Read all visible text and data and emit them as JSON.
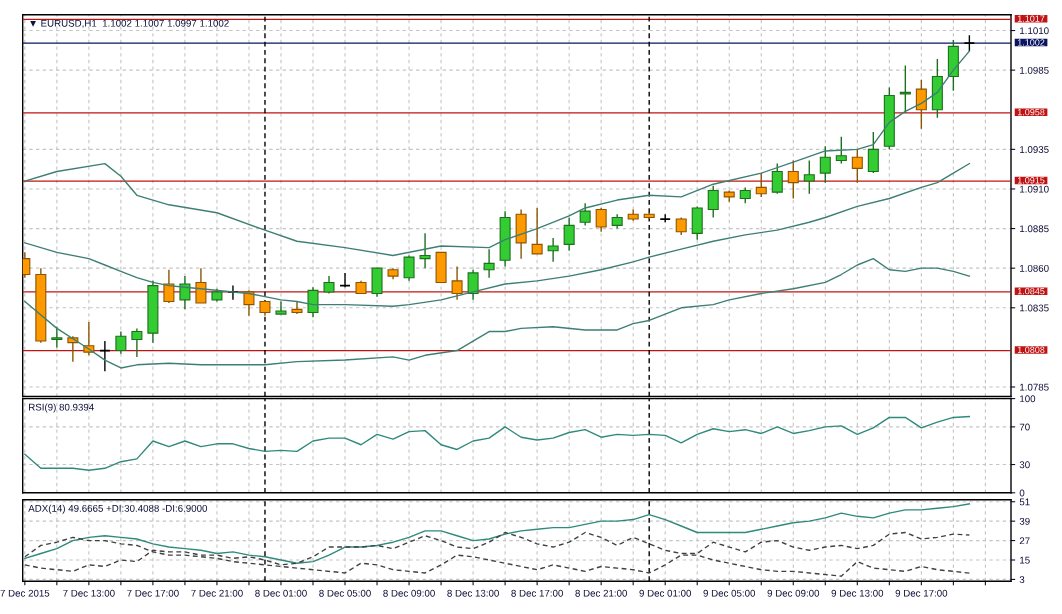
{
  "chart_data": [
    {
      "type": "candlestick",
      "title": "▼ EURUSD,H1  1.1002 1.1007 1.0997 1.1002",
      "x": [
        "2015-12-07T09:00",
        "2015-12-07T10:00",
        "2015-12-07T11:00",
        "2015-12-07T12:00",
        "2015-12-07T13:00",
        "2015-12-07T14:00",
        "2015-12-07T15:00",
        "2015-12-07T16:00",
        "2015-12-07T17:00",
        "2015-12-07T18:00",
        "2015-12-07T19:00",
        "2015-12-07T20:00",
        "2015-12-07T21:00",
        "2015-12-07T22:00",
        "2015-12-07T23:00",
        "2015-12-08T00:00",
        "2015-12-08T01:00",
        "2015-12-08T02:00",
        "2015-12-08T03:00",
        "2015-12-08T04:00",
        "2015-12-08T05:00",
        "2015-12-08T06:00",
        "2015-12-08T07:00",
        "2015-12-08T08:00",
        "2015-12-08T09:00",
        "2015-12-08T10:00",
        "2015-12-08T11:00",
        "2015-12-08T12:00",
        "2015-12-08T13:00",
        "2015-12-08T14:00",
        "2015-12-08T15:00",
        "2015-12-08T16:00",
        "2015-12-08T17:00",
        "2015-12-08T18:00",
        "2015-12-08T19:00",
        "2015-12-08T20:00",
        "2015-12-08T21:00",
        "2015-12-08T22:00",
        "2015-12-08T23:00",
        "2015-12-09T00:00",
        "2015-12-09T01:00",
        "2015-12-09T02:00",
        "2015-12-09T03:00",
        "2015-12-09T04:00",
        "2015-12-09T05:00",
        "2015-12-09T06:00",
        "2015-12-09T07:00",
        "2015-12-09T08:00",
        "2015-12-09T09:00",
        "2015-12-09T10:00",
        "2015-12-09T11:00",
        "2015-12-09T12:00",
        "2015-12-09T13:00",
        "2015-12-09T14:00",
        "2015-12-09T15:00",
        "2015-12-09T16:00",
        "2015-12-09T17:00",
        "2015-12-09T18:00",
        "2015-12-09T19:00",
        "2015-12-09T20:00"
      ],
      "ohlc": [
        [
          1.0866,
          1.087,
          1.0854,
          1.0856
        ],
        [
          1.0856,
          1.086,
          1.0813,
          1.0814
        ],
        [
          1.0815,
          1.0823,
          1.081,
          1.0816
        ],
        [
          1.0816,
          1.0817,
          1.0801,
          1.0813
        ],
        [
          1.0811,
          1.0826,
          1.0805,
          1.0807
        ],
        [
          1.0808,
          1.0814,
          1.0795,
          1.0808
        ],
        [
          1.0808,
          1.082,
          1.0806,
          1.0817
        ],
        [
          1.0815,
          1.0822,
          1.0804,
          1.082
        ],
        [
          1.0819,
          1.0852,
          1.0813,
          1.0849
        ],
        [
          1.085,
          1.0859,
          1.0838,
          1.0839
        ],
        [
          1.084,
          1.0855,
          1.0834,
          1.085
        ],
        [
          1.0851,
          1.086,
          1.0838,
          1.0838
        ],
        [
          1.084,
          1.0847,
          1.0839,
          1.0845
        ],
        [
          1.0845,
          1.0849,
          1.084,
          1.0845
        ],
        [
          1.0845,
          1.0846,
          1.083,
          1.0837
        ],
        [
          1.0839,
          1.0839,
          1.083,
          1.0832
        ],
        [
          1.0831,
          1.0839,
          1.0831,
          1.0833
        ],
        [
          1.0834,
          1.0839,
          1.0831,
          1.0832
        ],
        [
          1.0832,
          1.0848,
          1.0829,
          1.0846
        ],
        [
          1.0845,
          1.0855,
          1.0844,
          1.0851
        ],
        [
          1.0849,
          1.0857,
          1.0848,
          1.0849
        ],
        [
          1.0851,
          1.0852,
          1.0844,
          1.0844
        ],
        [
          1.0844,
          1.086,
          1.0842,
          1.086
        ],
        [
          1.0859,
          1.086,
          1.0853,
          1.0855
        ],
        [
          1.0854,
          1.0868,
          1.0852,
          1.0867
        ],
        [
          1.0866,
          1.0882,
          1.086,
          1.0868
        ],
        [
          1.087,
          1.087,
          1.0851,
          1.0851
        ],
        [
          1.0852,
          1.0861,
          1.084,
          1.0844
        ],
        [
          1.0844,
          1.0859,
          1.084,
          1.0857
        ],
        [
          1.0859,
          1.0872,
          1.0854,
          1.0863
        ],
        [
          1.0865,
          1.0896,
          1.0861,
          1.0892
        ],
        [
          1.0894,
          1.0897,
          1.0866,
          1.0876
        ],
        [
          1.0875,
          1.0898,
          1.0869,
          1.0869
        ],
        [
          1.0871,
          1.0879,
          1.0864,
          1.0874
        ],
        [
          1.0875,
          1.0892,
          1.0871,
          1.0887
        ],
        [
          1.0889,
          1.0901,
          1.0887,
          1.0896
        ],
        [
          1.0897,
          1.0898,
          1.0883,
          1.0886
        ],
        [
          1.0887,
          1.0894,
          1.0885,
          1.0892
        ],
        [
          1.0894,
          1.0897,
          1.089,
          1.0891
        ],
        [
          1.0894,
          1.0895,
          1.0891,
          1.0892
        ],
        [
          1.0891,
          1.0894,
          1.0889,
          1.0891
        ],
        [
          1.0891,
          1.0892,
          1.0881,
          1.0883
        ],
        [
          1.0882,
          1.0899,
          1.0878,
          1.0898
        ],
        [
          1.0897,
          1.0912,
          1.0892,
          1.0909
        ],
        [
          1.0908,
          1.0909,
          1.0902,
          1.0905
        ],
        [
          1.0904,
          1.0911,
          1.0901,
          1.0909
        ],
        [
          1.0911,
          1.092,
          1.0905,
          1.0907
        ],
        [
          1.0908,
          1.0926,
          1.0907,
          1.0921
        ],
        [
          1.0921,
          1.0928,
          1.0904,
          1.0914
        ],
        [
          1.0915,
          1.0928,
          1.0907,
          1.0919
        ],
        [
          1.092,
          1.0937,
          1.0914,
          1.093
        ],
        [
          1.0928,
          1.0943,
          1.0926,
          1.0931
        ],
        [
          1.093,
          1.0935,
          1.0914,
          1.0923
        ],
        [
          1.0921,
          1.0946,
          1.092,
          1.0935
        ],
        [
          1.0937,
          1.0974,
          1.0935,
          1.0969
        ],
        [
          1.097,
          1.0988,
          1.0958,
          1.0971
        ],
        [
          1.0973,
          1.0979,
          1.0948,
          1.096
        ],
        [
          1.096,
          1.0992,
          1.0955,
          1.0981
        ],
        [
          1.0981,
          1.1004,
          1.0972,
          1.1
        ],
        [
          1.1002,
          1.1007,
          1.0997,
          1.1002
        ]
      ],
      "colors": [
        "#ff9900",
        "#ff9900",
        "#33cc33",
        "#ff9900",
        "#ff9900",
        "#000000",
        "#33cc33",
        "#33cc33",
        "#33cc33",
        "#ff9900",
        "#33cc33",
        "#ff9900",
        "#33cc33",
        "#000000",
        "#ff9900",
        "#ff9900",
        "#33cc33",
        "#ff9900",
        "#33cc33",
        "#33cc33",
        "#000000",
        "#ff9900",
        "#33cc33",
        "#ff9900",
        "#33cc33",
        "#33cc33",
        "#ff9900",
        "#ff9900",
        "#33cc33",
        "#33cc33",
        "#33cc33",
        "#ff9900",
        "#ff9900",
        "#33cc33",
        "#33cc33",
        "#33cc33",
        "#ff9900",
        "#33cc33",
        "#ff9900",
        "#ff9900",
        "#000000",
        "#ff9900",
        "#33cc33",
        "#33cc33",
        "#ff9900",
        "#33cc33",
        "#ff9900",
        "#33cc33",
        "#ff9900",
        "#33cc33",
        "#33cc33",
        "#33cc33",
        "#ff9900",
        "#33cc33",
        "#33cc33",
        "#33cc33",
        "#ff9900",
        "#33cc33",
        "#33cc33",
        "#000000"
      ],
      "series": [
        {
          "type": "line",
          "color": "#3e7f74",
          "x": [
            "2015-12-07T09:00",
            "2015-12-07T11:00",
            "2015-12-07T14:00",
            "2015-12-07T15:00",
            "2015-12-07T16:00",
            "2015-12-07T18:00",
            "2015-12-07T21:00",
            "2015-12-08T00:00",
            "2015-12-08T02:00",
            "2015-12-08T05:00",
            "2015-12-08T08:00",
            "2015-12-08T11:00",
            "2015-12-08T14:00",
            "2015-12-08T15:00",
            "2015-12-08T17:00",
            "2015-12-08T19:00",
            "2015-12-08T20:00",
            "2015-12-08T22:00",
            "2015-12-09T00:00",
            "2015-12-09T02:00",
            "2015-12-09T04:00",
            "2015-12-09T07:00",
            "2015-12-09T09:00",
            "2015-12-09T11:00",
            "2015-12-09T13:00",
            "2015-12-09T14:00",
            "2015-12-09T15:00",
            "2015-12-09T16:00",
            "2015-12-09T17:00",
            "2015-12-09T18:00",
            "2015-12-09T19:00",
            "2015-12-09T20:00"
          ],
          "values": [
            1.0915,
            1.0921,
            1.0926,
            1.0918,
            1.0906,
            1.09,
            1.0895,
            1.0884,
            1.0877,
            1.0873,
            1.0868,
            1.0874,
            1.0873,
            1.0878,
            1.0885,
            1.0893,
            1.0898,
            1.0903,
            1.0906,
            1.0905,
            1.0913,
            1.092,
            1.0927,
            1.0934,
            1.0935,
            1.0938,
            1.0952,
            1.0959,
            1.0964,
            1.0971,
            1.0985,
            1.0997
          ]
        },
        {
          "type": "line",
          "color": "#3e7f74",
          "x": [
            "2015-12-07T09:00",
            "2015-12-07T11:00",
            "2015-12-07T13:00",
            "2015-12-07T14:00",
            "2015-12-07T15:00",
            "2015-12-07T16:00",
            "2015-12-07T17:00",
            "2015-12-07T18:00",
            "2015-12-07T19:00",
            "2015-12-07T20:00",
            "2015-12-07T22:00",
            "2015-12-07T23:00",
            "2015-12-08T00:00",
            "2015-12-08T01:00",
            "2015-12-08T02:00",
            "2015-12-08T03:00",
            "2015-12-08T05:00",
            "2015-12-08T08:00",
            "2015-12-08T09:00",
            "2015-12-08T11:00",
            "2015-12-08T13:00",
            "2015-12-08T15:00",
            "2015-12-08T17:00",
            "2015-12-08T19:00",
            "2015-12-08T21:00",
            "2015-12-08T23:00",
            "2015-12-09T00:00",
            "2015-12-09T02:00",
            "2015-12-09T04:00",
            "2015-12-09T06:00",
            "2015-12-09T08:00",
            "2015-12-09T10:00",
            "2015-12-09T11:00",
            "2015-12-09T13:00",
            "2015-12-09T15:00",
            "2015-12-09T17:00",
            "2015-12-09T18:00",
            "2015-12-09T19:00",
            "2015-12-09T20:00"
          ],
          "values": [
            1.0876,
            1.087,
            1.0866,
            1.0862,
            1.0858,
            1.0854,
            1.0851,
            1.0849,
            1.0848,
            1.0847,
            1.0845,
            1.0844,
            1.0842,
            1.084,
            1.0839,
            1.0837,
            1.0837,
            1.0836,
            1.0837,
            1.084,
            1.0845,
            1.085,
            1.0852,
            1.0855,
            1.0859,
            1.0864,
            1.0867,
            1.0872,
            1.0877,
            1.0881,
            1.0884,
            1.0889,
            1.0892,
            1.0899,
            1.0904,
            1.0911,
            1.0914,
            1.092,
            1.0926
          ]
        },
        {
          "type": "line",
          "color": "#3e7f74",
          "x": [
            "2015-12-07T09:00",
            "2015-12-07T11:00",
            "2015-12-07T13:00",
            "2015-12-07T14:00",
            "2015-12-07T15:00",
            "2015-12-07T16:00",
            "2015-12-07T18:00",
            "2015-12-07T20:00",
            "2015-12-08T00:00",
            "2015-12-08T02:00",
            "2015-12-08T05:00",
            "2015-12-08T08:00",
            "2015-12-08T09:00",
            "2015-12-08T10:00",
            "2015-12-08T12:00",
            "2015-12-08T13:00",
            "2015-12-08T14:00",
            "2015-12-08T15:00",
            "2015-12-08T16:00",
            "2015-12-08T18:00",
            "2015-12-08T20:00",
            "2015-12-08T22:00",
            "2015-12-08T23:00",
            "2015-12-09T00:00",
            "2015-12-09T02:00",
            "2015-12-09T04:00",
            "2015-12-09T05:00",
            "2015-12-09T07:00",
            "2015-12-09T09:00",
            "2015-12-09T11:00",
            "2015-12-09T12:00",
            "2015-12-09T13:00",
            "2015-12-09T14:00",
            "2015-12-09T15:00",
            "2015-12-09T16:00",
            "2015-12-09T17:00",
            "2015-12-09T18:00",
            "2015-12-09T19:00",
            "2015-12-09T20:00"
          ],
          "values": [
            1.0839,
            1.0822,
            1.0809,
            1.0802,
            1.0797,
            1.0799,
            1.08,
            1.0799,
            1.0799,
            1.0801,
            1.0802,
            1.0804,
            1.0802,
            1.0805,
            1.0808,
            1.0814,
            1.082,
            1.082,
            1.0822,
            1.0823,
            1.0821,
            1.0821,
            1.0825,
            1.0827,
            1.0835,
            1.0837,
            1.084,
            1.0844,
            1.0847,
            1.0851,
            1.0856,
            1.0862,
            1.0866,
            1.0859,
            1.0858,
            1.086,
            1.086,
            1.0858,
            1.0855
          ]
        }
      ],
      "xlim": [
        "2015-12-07T08:52",
        "2015-12-09T22:36"
      ],
      "xticks": [
        {
          "value": "2015-12-07T09:00",
          "label": null
        },
        {
          "value": "2015-12-07T11:00",
          "label": null
        },
        {
          "value": "2015-12-07T13:00",
          "label": null
        },
        {
          "value": "2015-12-07T15:00",
          "label": null
        },
        {
          "value": "2015-12-07T17:00",
          "label": null
        },
        {
          "value": "2015-12-07T19:00",
          "label": null
        },
        {
          "value": "2015-12-07T21:00",
          "label": null
        },
        {
          "value": "2015-12-07T23:00",
          "label": null
        },
        {
          "value": "2015-12-08T01:00",
          "label": null
        },
        {
          "value": "2015-12-08T03:00",
          "label": null
        },
        {
          "value": "2015-12-08T05:00",
          "label": null
        },
        {
          "value": "2015-12-08T07:00",
          "label": null
        },
        {
          "value": "2015-12-08T09:00",
          "label": null
        },
        {
          "value": "2015-12-08T11:00",
          "label": null
        },
        {
          "value": "2015-12-08T13:00",
          "label": null
        },
        {
          "value": "2015-12-08T15:00",
          "label": null
        },
        {
          "value": "2015-12-08T17:00",
          "label": null
        },
        {
          "value": "2015-12-08T19:00",
          "label": null
        },
        {
          "value": "2015-12-08T21:00",
          "label": null
        },
        {
          "value": "2015-12-08T23:00",
          "label": null
        },
        {
          "value": "2015-12-09T01:00",
          "label": null
        },
        {
          "value": "2015-12-09T03:00",
          "label": null
        },
        {
          "value": "2015-12-09T05:00",
          "label": null
        },
        {
          "value": "2015-12-09T07:00",
          "label": null
        },
        {
          "value": "2015-12-09T09:00",
          "label": null
        },
        {
          "value": "2015-12-09T11:00",
          "label": null
        },
        {
          "value": "2015-12-09T13:00",
          "label": null
        },
        {
          "value": "2015-12-09T15:00",
          "label": null
        },
        {
          "value": "2015-12-09T17:00",
          "label": null
        },
        {
          "value": "2015-12-09T19:00",
          "label": null
        },
        {
          "value": "2015-12-09T21:00",
          "label": null
        }
      ],
      "ylim": [
        1.0779,
        1.102
      ],
      "yticks": [
        {
          "value": 1.101,
          "label": "1.1010"
        },
        1.0985,
        1.0935,
        {
          "value": 1.091,
          "label": "1.0910"
        },
        1.0885,
        {
          "value": 1.086,
          "label": "1.0860"
        },
        1.0835,
        1.0785
      ],
      "tick_labels": "y",
      "grid": true,
      "ref_lines": [
        {
          "axis": "y",
          "value": 1.1017,
          "label": "1.1017",
          "color": "#c01414"
        },
        {
          "axis": "y",
          "value": 1.1002,
          "label": "1.1002",
          "color": "#0a1460"
        },
        {
          "axis": "y",
          "value": 1.0958,
          "label": "1.0958",
          "color": "#c01414"
        },
        {
          "axis": "y",
          "value": 1.0915,
          "label": "1.0915",
          "color": "#c01414"
        },
        {
          "axis": "y",
          "value": 1.0845,
          "label": "1.0845",
          "color": "#c01414"
        },
        {
          "axis": "y",
          "value": 1.0808,
          "label": "1.0808",
          "color": "#c01414"
        },
        {
          "axis": "x",
          "value": "2015-12-08T00:00",
          "color": "#000000",
          "line_style": "dashed"
        },
        {
          "axis": "x",
          "value": "2015-12-09T00:00",
          "color": "#000000",
          "line_style": "dashed"
        }
      ]
    },
    {
      "type": "line",
      "title": "RSI(9) 80.9394",
      "x": [
        "2015-12-07T09:00",
        "2015-12-07T10:00",
        "2015-12-07T11:00",
        "2015-12-07T12:00",
        "2015-12-07T13:00",
        "2015-12-07T14:00",
        "2015-12-07T15:00",
        "2015-12-07T16:00",
        "2015-12-07T17:00",
        "2015-12-07T18:00",
        "2015-12-07T19:00",
        "2015-12-07T20:00",
        "2015-12-07T21:00",
        "2015-12-07T22:00",
        "2015-12-07T23:00",
        "2015-12-08T00:00",
        "2015-12-08T01:00",
        "2015-12-08T02:00",
        "2015-12-08T03:00",
        "2015-12-08T04:00",
        "2015-12-08T05:00",
        "2015-12-08T06:00",
        "2015-12-08T07:00",
        "2015-12-08T08:00",
        "2015-12-08T09:00",
        "2015-12-08T10:00",
        "2015-12-08T11:00",
        "2015-12-08T12:00",
        "2015-12-08T13:00",
        "2015-12-08T14:00",
        "2015-12-08T15:00",
        "2015-12-08T16:00",
        "2015-12-08T17:00",
        "2015-12-08T18:00",
        "2015-12-08T19:00",
        "2015-12-08T20:00",
        "2015-12-08T21:00",
        "2015-12-08T22:00",
        "2015-12-08T23:00",
        "2015-12-09T00:00",
        "2015-12-09T01:00",
        "2015-12-09T02:00",
        "2015-12-09T03:00",
        "2015-12-09T04:00",
        "2015-12-09T05:00",
        "2015-12-09T06:00",
        "2015-12-09T07:00",
        "2015-12-09T08:00",
        "2015-12-09T09:00",
        "2015-12-09T10:00",
        "2015-12-09T11:00",
        "2015-12-09T12:00",
        "2015-12-09T13:00",
        "2015-12-09T14:00",
        "2015-12-09T15:00",
        "2015-12-09T16:00",
        "2015-12-09T17:00",
        "2015-12-09T18:00",
        "2015-12-09T19:00",
        "2015-12-09T20:00"
      ],
      "series": [
        {
          "color": "#2f8a7c",
          "values": [
            41,
            26,
            26,
            26,
            24,
            26,
            33,
            36,
            55,
            49,
            55,
            49,
            52,
            52,
            47,
            44,
            45,
            44,
            55,
            58,
            58,
            51,
            62,
            57,
            65,
            66,
            51,
            46,
            55,
            58,
            70,
            59,
            56,
            58,
            64,
            67,
            59,
            62,
            61,
            62,
            61,
            53,
            62,
            68,
            65,
            67,
            63,
            70,
            63,
            66,
            70,
            71,
            62,
            69,
            80,
            80,
            69,
            75,
            80,
            80.9394
          ]
        }
      ],
      "xlim": [
        "2015-12-07T08:52",
        "2015-12-09T22:36"
      ],
      "xticks": [
        {
          "value": "2015-12-07T09:00",
          "label": null
        },
        {
          "value": "2015-12-07T11:00",
          "label": null
        },
        {
          "value": "2015-12-07T13:00",
          "label": null
        },
        {
          "value": "2015-12-07T15:00",
          "label": null
        },
        {
          "value": "2015-12-07T17:00",
          "label": null
        },
        {
          "value": "2015-12-07T19:00",
          "label": null
        },
        {
          "value": "2015-12-07T21:00",
          "label": null
        },
        {
          "value": "2015-12-07T23:00",
          "label": null
        },
        {
          "value": "2015-12-08T01:00",
          "label": null
        },
        {
          "value": "2015-12-08T03:00",
          "label": null
        },
        {
          "value": "2015-12-08T05:00",
          "label": null
        },
        {
          "value": "2015-12-08T07:00",
          "label": null
        },
        {
          "value": "2015-12-08T09:00",
          "label": null
        },
        {
          "value": "2015-12-08T11:00",
          "label": null
        },
        {
          "value": "2015-12-08T13:00",
          "label": null
        },
        {
          "value": "2015-12-08T15:00",
          "label": null
        },
        {
          "value": "2015-12-08T17:00",
          "label": null
        },
        {
          "value": "2015-12-08T19:00",
          "label": null
        },
        {
          "value": "2015-12-08T21:00",
          "label": null
        },
        {
          "value": "2015-12-08T23:00",
          "label": null
        },
        {
          "value": "2015-12-09T01:00",
          "label": null
        },
        {
          "value": "2015-12-09T03:00",
          "label": null
        },
        {
          "value": "2015-12-09T05:00",
          "label": null
        },
        {
          "value": "2015-12-09T07:00",
          "label": null
        },
        {
          "value": "2015-12-09T09:00",
          "label": null
        },
        {
          "value": "2015-12-09T11:00",
          "label": null
        },
        {
          "value": "2015-12-09T13:00",
          "label": null
        },
        {
          "value": "2015-12-09T15:00",
          "label": null
        },
        {
          "value": "2015-12-09T17:00",
          "label": null
        },
        {
          "value": "2015-12-09T19:00",
          "label": null
        },
        {
          "value": "2015-12-09T21:00",
          "label": null
        }
      ],
      "ylim": [
        0,
        100
      ],
      "yticks": [
        0,
        30,
        70,
        100
      ],
      "tick_labels": "y",
      "grid": true,
      "ref_lines": [
        {
          "axis": "x",
          "value": "2015-12-08T00:00",
          "color": "#000000",
          "line_style": "dashed"
        },
        {
          "axis": "x",
          "value": "2015-12-09T00:00",
          "color": "#000000",
          "line_style": "dashed"
        }
      ]
    },
    {
      "type": "line",
      "title": "ADX(14) 49.6665 +DI:30.4088 -DI:6.9000",
      "x": [
        "2015-12-07T09:00",
        "2015-12-07T10:00",
        "2015-12-07T11:00",
        "2015-12-07T12:00",
        "2015-12-07T13:00",
        "2015-12-07T14:00",
        "2015-12-07T15:00",
        "2015-12-07T16:00",
        "2015-12-07T17:00",
        "2015-12-07T18:00",
        "2015-12-07T19:00",
        "2015-12-07T20:00",
        "2015-12-07T21:00",
        "2015-12-07T22:00",
        "2015-12-07T23:00",
        "2015-12-08T00:00",
        "2015-12-08T01:00",
        "2015-12-08T02:00",
        "2015-12-08T03:00",
        "2015-12-08T04:00",
        "2015-12-08T05:00",
        "2015-12-08T06:00",
        "2015-12-08T07:00",
        "2015-12-08T08:00",
        "2015-12-08T09:00",
        "2015-12-08T10:00",
        "2015-12-08T11:00",
        "2015-12-08T12:00",
        "2015-12-08T13:00",
        "2015-12-08T14:00",
        "2015-12-08T15:00",
        "2015-12-08T16:00",
        "2015-12-08T17:00",
        "2015-12-08T18:00",
        "2015-12-08T19:00",
        "2015-12-08T20:00",
        "2015-12-08T21:00",
        "2015-12-08T22:00",
        "2015-12-08T23:00",
        "2015-12-09T00:00",
        "2015-12-09T01:00",
        "2015-12-09T02:00",
        "2015-12-09T03:00",
        "2015-12-09T04:00",
        "2015-12-09T05:00",
        "2015-12-09T06:00",
        "2015-12-09T07:00",
        "2015-12-09T08:00",
        "2015-12-09T09:00",
        "2015-12-09T10:00",
        "2015-12-09T11:00",
        "2015-12-09T12:00",
        "2015-12-09T13:00",
        "2015-12-09T14:00",
        "2015-12-09T15:00",
        "2015-12-09T16:00",
        "2015-12-09T17:00",
        "2015-12-09T18:00",
        "2015-12-09T19:00",
        "2015-12-09T20:00"
      ],
      "series": [
        {
          "color": "#2f8a7c",
          "line_style": "solid",
          "values": [
            16,
            19,
            22,
            27,
            29,
            30,
            29,
            28,
            25,
            23,
            22,
            21,
            19,
            20,
            18,
            17,
            15,
            13,
            14,
            18,
            23,
            23,
            24,
            26,
            29,
            33,
            33,
            30,
            27,
            28,
            31,
            33,
            34,
            35,
            35,
            37,
            39,
            39,
            40,
            43,
            40,
            36,
            32,
            32,
            32,
            32,
            34,
            36,
            38,
            39,
            41,
            44,
            42,
            41,
            44,
            46,
            46,
            47,
            48,
            49.6665
          ]
        },
        {
          "color": "#404040",
          "line_style": "dashed",
          "values": [
            12,
            10,
            9,
            8,
            12,
            11,
            15,
            14,
            21,
            20,
            20,
            18,
            18,
            16,
            17,
            15,
            12,
            13,
            17,
            23,
            23,
            23,
            24,
            22,
            26,
            30,
            27,
            23,
            22,
            26,
            32,
            29,
            25,
            23,
            26,
            32,
            29,
            24,
            29,
            25,
            21,
            19,
            19,
            26,
            23,
            20,
            26,
            27,
            23,
            21,
            23,
            24,
            22,
            24,
            31,
            32,
            28,
            29,
            31,
            30.4088
          ]
        },
        {
          "color": "#404040",
          "line_style": "dashed",
          "values": [
            17,
            24,
            26,
            29,
            27,
            27,
            25,
            24,
            20,
            18,
            18,
            17,
            16,
            14,
            13,
            12,
            11,
            10,
            9,
            8,
            7,
            13,
            12,
            9,
            8,
            7,
            12,
            18,
            17,
            15,
            13,
            11,
            9,
            12,
            10,
            8,
            11,
            10,
            9,
            7,
            12,
            18,
            18,
            15,
            13,
            11,
            9,
            8,
            8,
            7,
            6,
            5,
            14,
            10,
            9,
            8,
            11,
            9,
            8,
            6.9
          ]
        }
      ],
      "xlim": [
        "2015-12-07T08:52",
        "2015-12-09T22:36"
      ],
      "xticks": [
        {
          "value": "2015-12-07T09:00",
          "label": "7 Dec 2015"
        },
        {
          "value": "2015-12-07T11:00",
          "label": null
        },
        {
          "value": "2015-12-07T13:00",
          "label": "7 Dec 13:00"
        },
        {
          "value": "2015-12-07T15:00",
          "label": null
        },
        {
          "value": "2015-12-07T17:00",
          "label": "7 Dec 17:00"
        },
        {
          "value": "2015-12-07T19:00",
          "label": null
        },
        {
          "value": "2015-12-07T21:00",
          "label": "7 Dec 21:00"
        },
        {
          "value": "2015-12-07T23:00",
          "label": null
        },
        {
          "value": "2015-12-08T01:00",
          "label": "8 Dec 01:00"
        },
        {
          "value": "2015-12-08T03:00",
          "label": null
        },
        {
          "value": "2015-12-08T05:00",
          "label": "8 Dec 05:00"
        },
        {
          "value": "2015-12-08T07:00",
          "label": null
        },
        {
          "value": "2015-12-08T09:00",
          "label": "8 Dec 09:00"
        },
        {
          "value": "2015-12-08T11:00",
          "label": null
        },
        {
          "value": "2015-12-08T13:00",
          "label": "8 Dec 13:00"
        },
        {
          "value": "2015-12-08T15:00",
          "label": null
        },
        {
          "value": "2015-12-08T17:00",
          "label": "8 Dec 17:00"
        },
        {
          "value": "2015-12-08T19:00",
          "label": null
        },
        {
          "value": "2015-12-08T21:00",
          "label": "8 Dec 21:00"
        },
        {
          "value": "2015-12-08T23:00",
          "label": null
        },
        {
          "value": "2015-12-09T01:00",
          "label": "9 Dec 01:00"
        },
        {
          "value": "2015-12-09T03:00",
          "label": null
        },
        {
          "value": "2015-12-09T05:00",
          "label": "9 Dec 05:00"
        },
        {
          "value": "2015-12-09T07:00",
          "label": null
        },
        {
          "value": "2015-12-09T09:00",
          "label": "9 Dec 09:00"
        },
        {
          "value": "2015-12-09T11:00",
          "label": null
        },
        {
          "value": "2015-12-09T13:00",
          "label": "9 Dec 13:00"
        },
        {
          "value": "2015-12-09T15:00",
          "label": null
        },
        {
          "value": "2015-12-09T17:00",
          "label": "9 Dec 17:00"
        },
        {
          "value": "2015-12-09T19:00",
          "label": null
        },
        {
          "value": "2015-12-09T21:00",
          "label": null
        }
      ],
      "ylim": [
        1.9,
        52.2
      ],
      "yticks": [
        3,
        15,
        27,
        39,
        51
      ],
      "grid": true,
      "ref_lines": [
        {
          "axis": "x",
          "value": "2015-12-08T00:00",
          "color": "#000000",
          "line_style": "dashed"
        },
        {
          "axis": "x",
          "value": "2015-12-09T00:00",
          "color": "#000000",
          "line_style": "dashed"
        }
      ]
    }
  ]
}
